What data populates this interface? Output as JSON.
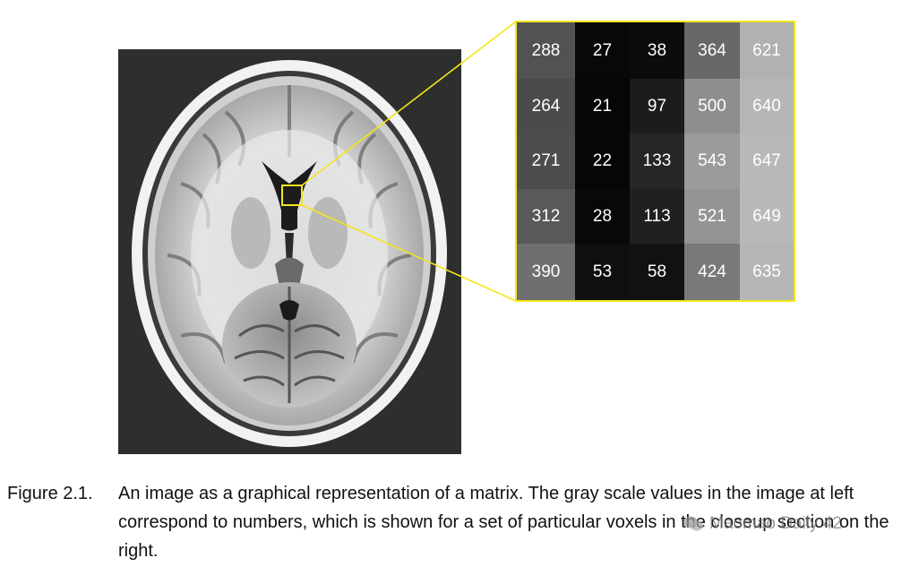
{
  "matrix": {
    "rows": [
      [
        288,
        27,
        38,
        364,
        621
      ],
      [
        264,
        21,
        97,
        500,
        640
      ],
      [
        271,
        22,
        133,
        543,
        647
      ],
      [
        312,
        28,
        113,
        521,
        649
      ],
      [
        390,
        53,
        58,
        424,
        635
      ]
    ],
    "max_value": 720,
    "highlight_color": "#f2e61a"
  },
  "caption": {
    "label": "Figure 2.1.",
    "text": "An image as a graphical representation of a matrix. The gray scale values in the image at left correspond to numbers, which is shown for a set of particular voxels in the closeup section on the right."
  },
  "watermark": {
    "text": "Maomao Daily 42",
    "icon": "wechat-icon"
  }
}
